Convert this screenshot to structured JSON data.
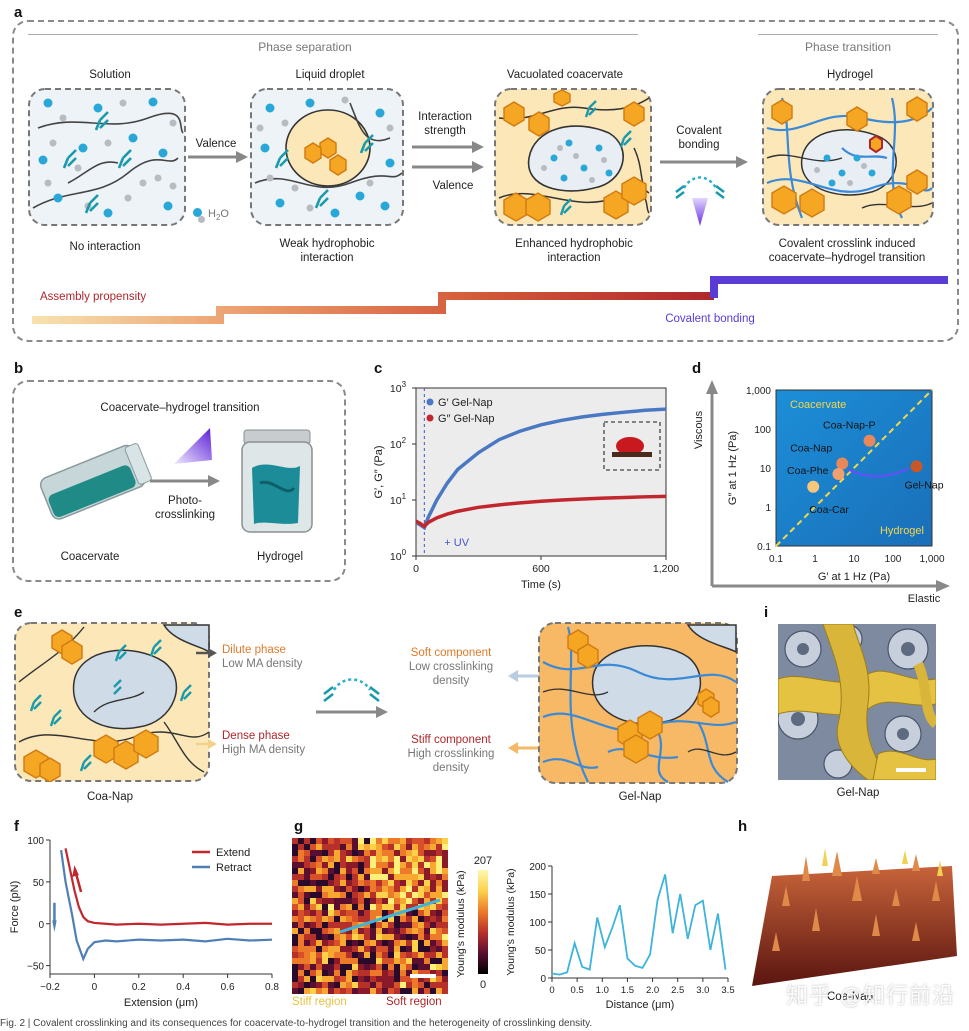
{
  "panel_a": {
    "letter": "a",
    "header_left": "Phase separation",
    "header_right": "Phase transition",
    "stages": [
      {
        "title": "Solution",
        "caption": "No interaction"
      },
      {
        "title": "Liquid droplet",
        "caption": "Weak hydrophobic interaction"
      },
      {
        "title": "Vacuolated coacervate",
        "caption": "Enhanced hydrophobic interaction"
      },
      {
        "title": "Hydrogel",
        "caption": "Covalent crosslink induced coacervate–hydrogel transition"
      }
    ],
    "arrows": {
      "a1": "Valence",
      "a2_top": "Interaction strength",
      "a2_bottom": "Valence",
      "a3": "Covalent bonding"
    },
    "water_label": "H",
    "water_sub": "2",
    "water_o": "O",
    "assembly_label": "Assembly propensity",
    "covalent_label": "Covalent bonding",
    "colors": {
      "assembly": "#b0262a",
      "covalent": "#5b3bd6",
      "cell_bg": "#eef3f8",
      "coacervate_bg": "#fbe7b8"
    }
  },
  "panel_b": {
    "letter": "b",
    "title": "Coacervate–hydrogel transition",
    "arrow_label_1": "Photo-",
    "arrow_label_2": "crosslinking",
    "left_label": "Coacervate",
    "right_label": "Hydrogel"
  },
  "panel_c": {
    "letter": "c",
    "uv_label": "+ UV",
    "xlabel": "Time (s)",
    "ylabel": "G′, G″ (Pa)",
    "xticks": [
      "0",
      "600",
      "1,200"
    ],
    "yticks": [
      "10",
      "10",
      "10",
      "10"
    ],
    "ytick_exps": [
      "0",
      "1",
      "2",
      "3"
    ],
    "chart_data": {
      "type": "line",
      "xlabel": "Time (s)",
      "ylabel": "G′, G″ (Pa)",
      "xlim": [
        0,
        1200
      ],
      "ylim": [
        1,
        1000
      ],
      "yscale": "log",
      "series": [
        {
          "name": "G′ Gel-Nap",
          "color": "#4a78c2",
          "x": [
            0,
            20,
            40,
            60,
            100,
            150,
            200,
            300,
            400,
            500,
            600,
            700,
            800,
            900,
            1000,
            1100,
            1200
          ],
          "y": [
            4.0,
            3.6,
            3.2,
            5.0,
            10,
            20,
            35,
            70,
            120,
            170,
            220,
            265,
            305,
            340,
            370,
            400,
            420
          ]
        },
        {
          "name": "G″ Gel-Nap",
          "color": "#c1272d",
          "x": [
            0,
            20,
            40,
            60,
            100,
            150,
            200,
            300,
            400,
            500,
            600,
            700,
            800,
            900,
            1000,
            1100,
            1200
          ],
          "y": [
            4.2,
            3.8,
            3.4,
            4.0,
            4.8,
            5.6,
            6.3,
            7.4,
            8.2,
            8.9,
            9.5,
            10.0,
            10.4,
            10.8,
            11.1,
            11.4,
            11.6
          ]
        }
      ]
    }
  },
  "panel_d": {
    "letter": "d",
    "xlabel": "G′ at 1 Hz (Pa)",
    "ylabel": "G″ at 1 Hz (Pa)",
    "axis_up": "Viscous",
    "axis_right": "Elastic",
    "region_top": "Coacervate",
    "region_bottom": "Hydrogel",
    "ticks": [
      "0.1",
      "1",
      "10",
      "100",
      "1,000"
    ],
    "chart_data": {
      "type": "scatter",
      "xscale": "log",
      "yscale": "log",
      "xlim": [
        0.1,
        1000
      ],
      "ylim": [
        0.1,
        1000
      ],
      "points": [
        {
          "label": "Coa-Nap-P",
          "x": 25,
          "y": 50,
          "color": "#e8885a"
        },
        {
          "label": "Coa-Nap",
          "x": 5,
          "y": 13,
          "color": "#e8885a"
        },
        {
          "label": "Coa-Phe",
          "x": 4,
          "y": 7,
          "color": "#f0a070"
        },
        {
          "label": "Coa-Car",
          "x": 0.9,
          "y": 3.3,
          "color": "#f6c67a"
        },
        {
          "label": "Gel-Nap",
          "x": 400,
          "y": 11,
          "color": "#c8582a"
        }
      ]
    }
  },
  "panel_e": {
    "letter": "e",
    "left_caption": "Coa-Nap",
    "right_caption": "Gel-Nap",
    "dilute_title": "Dilute phase",
    "dilute_sub": "Low MA density",
    "dense_title": "Dense phase",
    "dense_sub": "High MA density",
    "soft_title": "Soft component",
    "soft_sub1": "Low crosslinking",
    "soft_sub2": "density",
    "stiff_title": "Stiff component",
    "stiff_sub1": "High crosslinking",
    "stiff_sub2": "density"
  },
  "panel_i": {
    "letter": "i",
    "caption": "Gel-Nap"
  },
  "panel_f": {
    "letter": "f",
    "xlabel": "Extension (μm)",
    "ylabel": "Force (pN)",
    "xticks": [
      "−0.2",
      "0",
      "0.2",
      "0.4",
      "0.6",
      "0.8"
    ],
    "yticks": [
      "100",
      "50",
      "0",
      "−50"
    ],
    "chart_data": {
      "type": "line",
      "xlabel": "Extension (μm)",
      "ylabel": "Force (pN)",
      "xlim": [
        -0.2,
        0.8
      ],
      "ylim": [
        -60,
        100
      ],
      "series": [
        {
          "name": "Extend",
          "color": "#c1272d",
          "x": [
            -0.13,
            -0.11,
            -0.09,
            -0.07,
            -0.05,
            -0.03,
            0.0,
            0.05,
            0.1,
            0.2,
            0.3,
            0.4,
            0.5,
            0.6,
            0.7,
            0.8
          ],
          "y": [
            90,
            65,
            40,
            20,
            8,
            3,
            1,
            0,
            -1,
            0,
            -1,
            0,
            1,
            -1,
            0,
            0
          ]
        },
        {
          "name": "Retract",
          "color": "#4f7fb5",
          "x": [
            -0.15,
            -0.13,
            -0.1,
            -0.08,
            -0.05,
            -0.03,
            0.0,
            0.05,
            0.1,
            0.2,
            0.3,
            0.4,
            0.5,
            0.6,
            0.7,
            0.8
          ],
          "y": [
            88,
            50,
            10,
            -20,
            -42,
            -30,
            -22,
            -20,
            -21,
            -19,
            -20,
            -19,
            -21,
            -18,
            -20,
            -19
          ]
        }
      ]
    }
  },
  "panel_g": {
    "letter": "g",
    "colorbar_label": "Young's modulus (kPa)",
    "colorbar_max": "207",
    "colorbar_min": "0",
    "stiff_label": "Stiff region",
    "soft_label": "Soft region",
    "line_xlabel": "Distance (μm)",
    "line_ylabel": "Young's modulus (kPa)",
    "line_xticks": [
      "0",
      "0.5",
      "1.0",
      "1.5",
      "2.0",
      "2.5",
      "3.0",
      "3.5"
    ],
    "line_yticks": [
      "200",
      "150",
      "100",
      "50",
      "0"
    ],
    "chart_data": {
      "type": "line",
      "xlabel": "Distance (μm)",
      "ylabel": "Young's modulus (kPa)",
      "xlim": [
        0,
        3.5
      ],
      "ylim": [
        0,
        200
      ],
      "series": [
        {
          "color": "#3db4dc",
          "x": [
            0,
            0.15,
            0.3,
            0.45,
            0.6,
            0.75,
            0.9,
            1.05,
            1.2,
            1.35,
            1.5,
            1.65,
            1.8,
            1.95,
            2.1,
            2.25,
            2.4,
            2.55,
            2.7,
            2.85,
            3.0,
            3.15,
            3.3,
            3.45
          ],
          "y": [
            8,
            6,
            10,
            62,
            20,
            15,
            108,
            55,
            90,
            130,
            35,
            22,
            18,
            42,
            140,
            185,
            80,
            150,
            70,
            130,
            138,
            50,
            115,
            15
          ]
        }
      ]
    }
  },
  "panel_h": {
    "letter": "h",
    "caption": "Coa-Nap"
  },
  "watermark": "知乎 @知行前沿",
  "caption_line": "Fig. 2 | Covalent crosslinking and its consequences for coacervate-to-hydrogel transition and the heterogeneity of crosslinking density."
}
